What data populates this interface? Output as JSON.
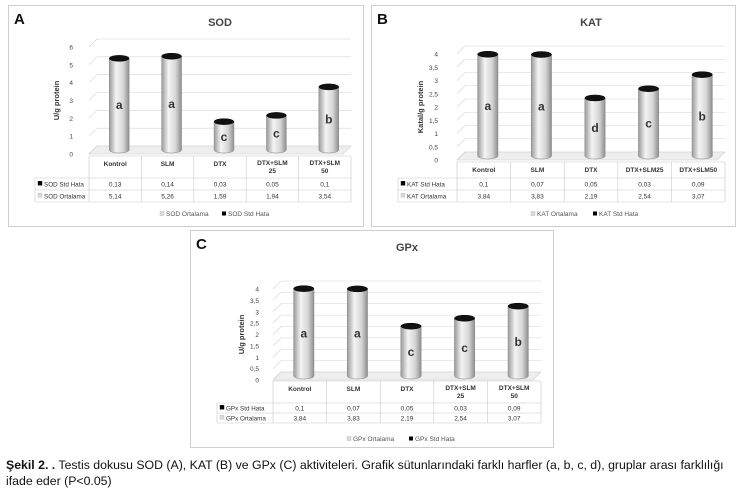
{
  "caption": {
    "label": "Şekil 2. .",
    "text": "Testis dokusu SOD (A), KAT (B) ve GPx (C) aktiviteleri. Grafik sütunlarındaki farklı harfler (a, b, c, d), gruplar arası farklılığı ifade eder (P<0.05)"
  },
  "chart_data": [
    {
      "panel": "A",
      "type": "bar",
      "title": "SOD",
      "ylabel": "U/g protein",
      "ylim": [
        0,
        6
      ],
      "yticks": [
        0,
        1,
        2,
        3,
        4,
        5,
        6
      ],
      "grid": true,
      "legend_position": "bottom",
      "categories": [
        "Kontrol",
        "SLM",
        "DTX",
        "DTX+SLM 25",
        "DTX+SLM 50"
      ],
      "letters": [
        "a",
        "a",
        "c",
        "c",
        "b"
      ],
      "series": [
        {
          "name": "SOD Ortalama",
          "values": [
            5.14,
            5.26,
            1.59,
            1.94,
            3.54
          ],
          "labels": [
            "5,14",
            "5,26",
            "1,59",
            "1,94",
            "3,54"
          ],
          "color": "#d9d9d9"
        },
        {
          "name": "SOD Std Hata",
          "values": [
            0.13,
            0.14,
            0.03,
            0.05,
            0.1
          ],
          "labels": [
            "0,13",
            "0,14",
            "0,03",
            "0,05",
            "0,1"
          ],
          "color": "#000000"
        }
      ],
      "legend": [
        "SOD Ortalama",
        "SOD Std Hata"
      ]
    },
    {
      "panel": "B",
      "type": "bar",
      "title": "KAT",
      "ylabel": "Katal/g protein",
      "ylim": [
        0,
        4
      ],
      "yticks": [
        0,
        0.5,
        1,
        1.5,
        2,
        2.5,
        3,
        3.5,
        4
      ],
      "grid": true,
      "legend_position": "bottom",
      "categories": [
        "Kontrol",
        "SLM",
        "DTX",
        "DTX+SLM25",
        "DTX+SLM50"
      ],
      "letters": [
        "a",
        "a",
        "d",
        "c",
        "b"
      ],
      "series": [
        {
          "name": "KAT Ortalama",
          "values": [
            3.84,
            3.83,
            2.19,
            2.54,
            3.07
          ],
          "labels": [
            "3,84",
            "3,83",
            "2,19",
            "2,54",
            "3,07"
          ],
          "color": "#d9d9d9"
        },
        {
          "name": "KAT Std Hata",
          "values": [
            0.1,
            0.07,
            0.05,
            0.03,
            0.09
          ],
          "labels": [
            "0,1",
            "0,07",
            "0,05",
            "0,03",
            "0,09"
          ],
          "color": "#000000"
        }
      ],
      "legend": [
        "KAT Ortalama",
        "KAT Std Hata"
      ]
    },
    {
      "panel": "C",
      "type": "bar",
      "title": "GPx",
      "ylabel": "U/g protein",
      "ylim": [
        0,
        4
      ],
      "yticks": [
        0,
        0.5,
        1,
        1.5,
        2,
        2.5,
        3,
        3.5,
        4
      ],
      "grid": true,
      "legend_position": "bottom",
      "categories": [
        "Kontrol",
        "SLM",
        "DTX",
        "DTX+SLM 25",
        "DTX+SLM 50"
      ],
      "letters": [
        "a",
        "a",
        "c",
        "c",
        "b"
      ],
      "series": [
        {
          "name": "GPx Ortalama",
          "values": [
            3.84,
            3.83,
            2.19,
            2.54,
            3.07
          ],
          "labels": [
            "3,84",
            "3,83",
            "2,19",
            "2,54",
            "3,07"
          ],
          "color": "#d9d9d9"
        },
        {
          "name": "GPx Std Hata",
          "values": [
            0.1,
            0.07,
            0.05,
            0.03,
            0.09
          ],
          "labels": [
            "0,1",
            "0,07",
            "0,05",
            "0,03",
            "0,09"
          ],
          "color": "#000000"
        }
      ],
      "legend": [
        "GPx Ortalama",
        "GPx Std Hata"
      ]
    }
  ]
}
